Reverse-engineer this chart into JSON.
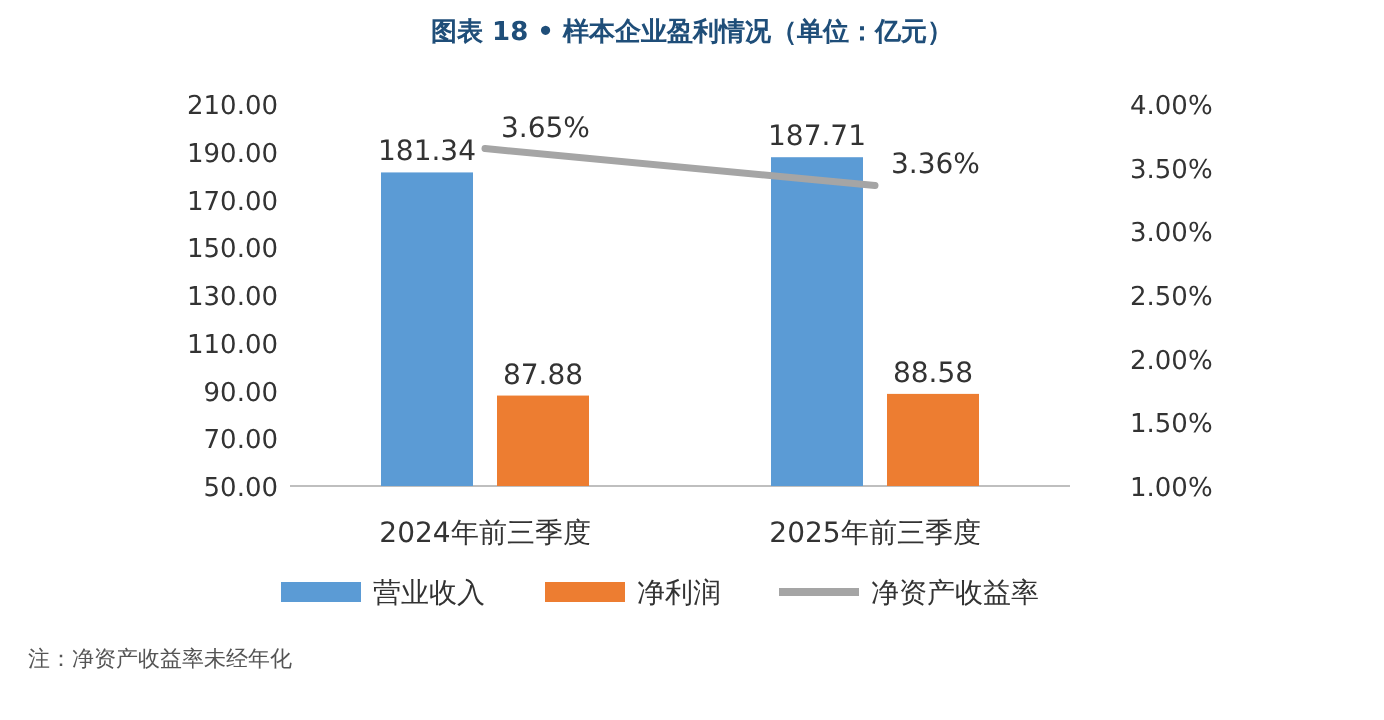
{
  "chart_data": {
    "type": "bar",
    "title": "图表 18 • 样本企业盈利情况（单位：亿元）",
    "categories": [
      "2024年前三季度",
      "2025年前三季度"
    ],
    "series": [
      {
        "name": "营业收入",
        "color": "#5b9bd5",
        "values": [
          181.34,
          187.71
        ],
        "value_labels": [
          "181.34",
          "187.71"
        ]
      },
      {
        "name": "净利润",
        "color": "#ed7d31",
        "values": [
          87.88,
          88.58
        ],
        "value_labels": [
          "87.88",
          "88.58"
        ]
      },
      {
        "name": "净资产收益率",
        "type": "line",
        "axis": "y2",
        "color": "#a5a5a5",
        "values": [
          3.65,
          3.36
        ],
        "value_labels": [
          "3.65%",
          "3.36%"
        ]
      }
    ],
    "ylim": [
      50,
      210
    ],
    "yticks": [
      {
        "value": 50,
        "label": "50.00"
      },
      {
        "value": 70,
        "label": "70.00"
      },
      {
        "value": 90,
        "label": "90.00"
      },
      {
        "value": 110,
        "label": "110.00"
      },
      {
        "value": 130,
        "label": "130.00"
      },
      {
        "value": 150,
        "label": "150.00"
      },
      {
        "value": 170,
        "label": "170.00"
      },
      {
        "value": 190,
        "label": "190.00"
      },
      {
        "value": 210,
        "label": "210.00"
      }
    ],
    "y2lim": [
      1,
      4
    ],
    "y2ticks": [
      {
        "value": 1,
        "label": "1.00%"
      },
      {
        "value": 1.5,
        "label": "1.50%"
      },
      {
        "value": 2,
        "label": "2.00%"
      },
      {
        "value": 2.5,
        "label": "2.50%"
      },
      {
        "value": 3,
        "label": "3.00%"
      },
      {
        "value": 3.5,
        "label": "3.50%"
      },
      {
        "value": 4,
        "label": "4.00%"
      }
    ],
    "legend": "bottom",
    "annotations": [
      "注：净资产收益率未经年化"
    ]
  }
}
